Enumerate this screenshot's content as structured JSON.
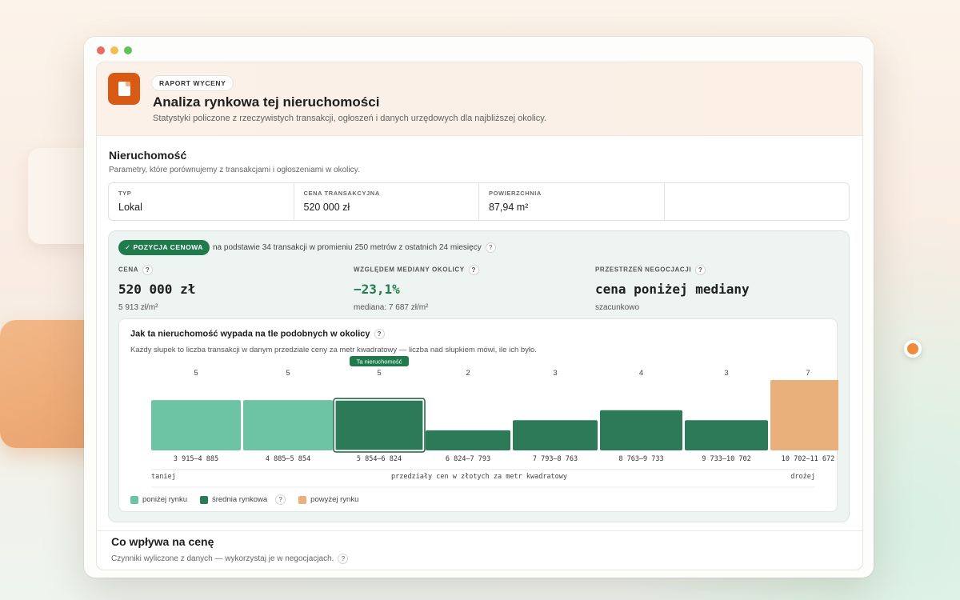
{
  "hero": {
    "badge": "RAPORT WYCENY",
    "title": "Analiza rynkowa tej nieruchomości",
    "subtitle": "Statystyki policzone z rzeczywistych transakcji, ogłoszeń i danych urzędowych dla najbliższej okolicy."
  },
  "property": {
    "title": "Nieruchomość",
    "subtitle": "Parametry, które porównujemy z transakcjami i ogłoszeniami w okolicy.",
    "params": [
      {
        "label": "TYP",
        "value": "Lokal"
      },
      {
        "label": "CENA TRANSAKCYJNA",
        "value": "520 000 zł"
      },
      {
        "label": "POWIERZCHNIA",
        "value": "87,94 m²"
      },
      {
        "label": "",
        "value": ""
      }
    ]
  },
  "price_position": {
    "pill": "✓ POZYCJA CENOWA",
    "basis": "na podstawie 34 transakcji w promieniu 250 metrów z ostatnich 24 miesięcy",
    "metrics": [
      {
        "label": "CENA",
        "value": "520 000 zł",
        "sub": "5 913 zł/m²"
      },
      {
        "label": "WZGLĘDEM MEDIANY OKOLICY",
        "value": "−23,1%",
        "sub": "mediana: 7 687 zł/m²"
      },
      {
        "label": "PRZESTRZEŃ NEGOCJACJI",
        "value": "cena poniżej mediany",
        "sub": "szacunkowo"
      }
    ]
  },
  "chart": {
    "title": "Jak ta nieruchomość wypada na tle podobnych w okolicy",
    "subtitle": "Każdy słupek to liczba transakcji w danym przedziale ceny za metr kwadratowy — liczba nad słupkiem mówi, ile ich było.",
    "this_property_label": "Ta nieruchomość",
    "left_label": "taniej",
    "center_label": "przedziały cen w złotych za metr kwadratowy",
    "right_label": "drożej",
    "legend": [
      {
        "label": "poniżej rynku",
        "color": "#6cc4a4"
      },
      {
        "label": "średnia rynkowa",
        "color": "#2c7a57"
      },
      {
        "label": "powyżej rynku",
        "color": "#eab07c"
      }
    ]
  },
  "chart_data": {
    "type": "bar",
    "title": "Jak ta nieruchomość wypada na tle podobnych w okolicy",
    "xlabel": "przedziały cen w złotych za metr kwadratowy",
    "ylabel": "",
    "categories": [
      "3 915–4 885",
      "4 885–5 854",
      "5 854–6 824",
      "6 824–7 793",
      "7 793–8 763",
      "8 763–9 733",
      "9 733–10 702",
      "10 702–11 672"
    ],
    "values": [
      5,
      5,
      5,
      2,
      3,
      4,
      3,
      7
    ],
    "bar_classes": [
      "poniżej rynku",
      "poniżej rynku",
      "średnia rynkowa",
      "średnia rynkowa",
      "średnia rynkowa",
      "średnia rynkowa",
      "średnia rynkowa",
      "powyżej rynku"
    ],
    "highlight_index": 2,
    "ylim": [
      0,
      7
    ]
  },
  "factors": {
    "title": "Co wpływa na cenę",
    "subtitle": "Czynniki wyliczone z danych — wykorzystaj je w negocjacjach."
  }
}
